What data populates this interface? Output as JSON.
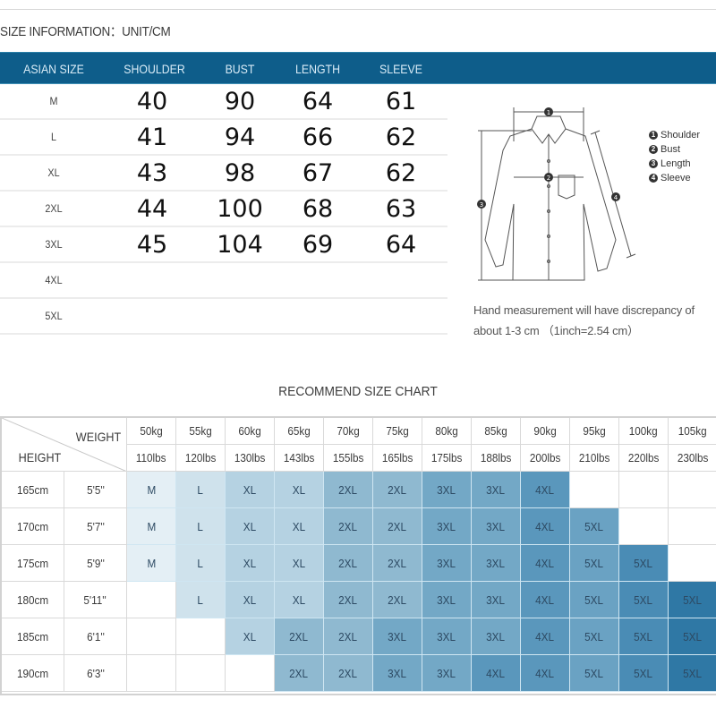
{
  "size_info": {
    "title": "SIZE INFORMATION：UNIT/CM",
    "header_color": "#0e5d8a",
    "columns": [
      "ASIAN SIZE",
      "SHOULDER",
      "BUST",
      "LENGTH",
      "SLEEVE"
    ],
    "rows": [
      {
        "size": "M",
        "shoulder": "40",
        "bust": "90",
        "length": "64",
        "sleeve": "61"
      },
      {
        "size": "L",
        "shoulder": "41",
        "bust": "94",
        "length": "66",
        "sleeve": "62"
      },
      {
        "size": "XL",
        "shoulder": "43",
        "bust": "98",
        "length": "67",
        "sleeve": "62"
      },
      {
        "size": "2XL",
        "shoulder": "44",
        "bust": "100",
        "length": "68",
        "sleeve": "63"
      },
      {
        "size": "3XL",
        "shoulder": "45",
        "bust": "104",
        "length": "69",
        "sleeve": "64"
      },
      {
        "size": "4XL",
        "shoulder": "",
        "bust": "",
        "length": "",
        "sleeve": ""
      },
      {
        "size": "5XL",
        "shoulder": "",
        "bust": "",
        "length": "",
        "sleeve": ""
      }
    ]
  },
  "diagram": {
    "icon": "shirt-measurement-diagram",
    "markers": [
      "1",
      "2",
      "3",
      "4"
    ],
    "legend": [
      {
        "num": "1",
        "label": "Shoulder"
      },
      {
        "num": "2",
        "label": "Bust"
      },
      {
        "num": "3",
        "label": "Length"
      },
      {
        "num": "4",
        "label": "Sleeve"
      }
    ],
    "note_line1": "Hand measurement will have discrepancy of",
    "note_line2": "about 1-3 cm （1inch=2.54 cm）"
  },
  "recommend": {
    "title": "RECOMMEND SIZE CHART",
    "corner_weight": "WEIGHT",
    "corner_height": "HEIGHT",
    "weights_kg": [
      "50kg",
      "55kg",
      "60kg",
      "65kg",
      "70kg",
      "75kg",
      "80kg",
      "85kg",
      "90kg",
      "95kg",
      "100kg",
      "105kg"
    ],
    "weights_lbs": [
      "110lbs",
      "120lbs",
      "130lbs",
      "143lbs",
      "155lbs",
      "165lbs",
      "175lbs",
      "188lbs",
      "200lbs",
      "210lbs",
      "220lbs",
      "230lbs"
    ],
    "size_colors": {
      "M": "#e4eff5",
      "L": "#cfe2ec",
      "XL": "#b5d2e2",
      "2XL": "#8fb9d0",
      "3XL": "#73a8c6",
      "4XL": "#5a97bc",
      "5XL-light": "#6aa2c3",
      "5XL-mid": "#4a8cb5",
      "5XL-dark": "#2f78a5"
    },
    "rows": [
      {
        "cm": "165cm",
        "ft": "5'5''",
        "sizes": [
          "M",
          "L",
          "XL",
          "XL",
          "2XL",
          "2XL",
          "3XL",
          "3XL",
          "4XL",
          "",
          "",
          ""
        ]
      },
      {
        "cm": "170cm",
        "ft": "5'7''",
        "sizes": [
          "M",
          "L",
          "XL",
          "XL",
          "2XL",
          "2XL",
          "3XL",
          "3XL",
          "4XL",
          "5XL",
          "",
          ""
        ]
      },
      {
        "cm": "175cm",
        "ft": "5'9''",
        "sizes": [
          "M",
          "L",
          "XL",
          "XL",
          "2XL",
          "2XL",
          "3XL",
          "3XL",
          "4XL",
          "5XL",
          "5XL",
          ""
        ]
      },
      {
        "cm": "180cm",
        "ft": "5'11''",
        "sizes": [
          "",
          "L",
          "XL",
          "XL",
          "2XL",
          "2XL",
          "3XL",
          "3XL",
          "4XL",
          "5XL",
          "5XL",
          "5XL"
        ]
      },
      {
        "cm": "185cm",
        "ft": "6'1''",
        "sizes": [
          "",
          "",
          "XL",
          "2XL",
          "2XL",
          "3XL",
          "3XL",
          "3XL",
          "4XL",
          "5XL",
          "5XL",
          "5XL"
        ]
      },
      {
        "cm": "190cm",
        "ft": "6'3''",
        "sizes": [
          "",
          "",
          "",
          "2XL",
          "2XL",
          "3XL",
          "3XL",
          "4XL",
          "4XL",
          "5XL",
          "5XL",
          "5XL"
        ]
      }
    ]
  }
}
